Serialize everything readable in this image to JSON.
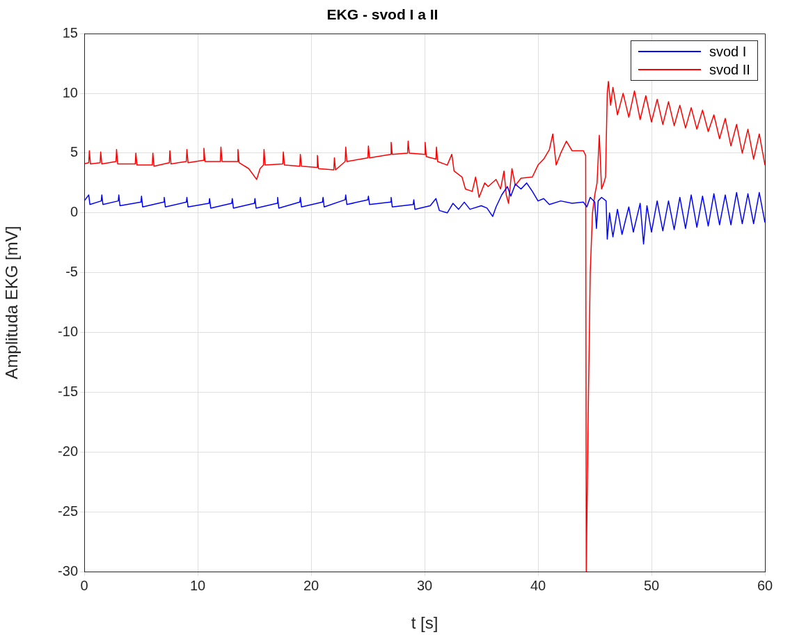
{
  "chart_data": {
    "type": "line",
    "title": "EKG - svod I a II",
    "xlabel": "t [s]",
    "ylabel": "Amplituda EKG [mV]",
    "xlim": [
      0,
      60
    ],
    "ylim": [
      -30,
      15
    ],
    "xticks": [
      0,
      10,
      20,
      30,
      40,
      50,
      60
    ],
    "yticks": [
      -30,
      -25,
      -20,
      -15,
      -10,
      -5,
      0,
      5,
      10,
      15
    ],
    "grid": true,
    "legend": "top right",
    "series": [
      {
        "name": "svod I",
        "color": "#0000ff",
        "x": [
          0,
          0.4,
          0.5,
          1.5,
          1.55,
          1.65,
          3,
          3.05,
          3.15,
          5,
          5.05,
          5.15,
          7,
          7.05,
          7.15,
          9,
          9.05,
          9.15,
          11,
          11.05,
          11.15,
          13,
          13.05,
          13.15,
          15,
          15.05,
          15.15,
          17,
          17.05,
          17.15,
          19,
          19.05,
          19.15,
          21,
          21.05,
          21.15,
          23,
          23.05,
          23.15,
          25,
          25.05,
          25.15,
          27,
          27.05,
          27.15,
          29,
          29.05,
          29.15,
          30.5,
          31,
          31.3,
          32,
          32.5,
          33,
          33.5,
          34,
          35,
          35.5,
          36,
          36.3,
          36.8,
          37.3,
          37.6,
          38,
          38.5,
          39,
          39.5,
          40,
          40.5,
          41,
          42,
          43,
          44,
          44.3,
          44.6,
          45,
          45.15,
          45.3,
          45.6,
          46,
          46.1,
          46.3,
          46.6,
          47,
          47.4,
          48,
          48.4,
          49,
          49.3,
          49.6,
          50,
          50.5,
          51,
          51.5,
          52,
          52.5,
          53,
          53.5,
          54,
          54.5,
          55,
          55.5,
          56,
          56.5,
          57,
          57.5,
          58,
          58.5,
          59,
          59.5,
          60
        ],
        "values": [
          1.0,
          1.5,
          0.7,
          1.0,
          1.5,
          0.7,
          1.0,
          1.5,
          0.6,
          0.9,
          1.4,
          0.5,
          0.9,
          1.3,
          0.5,
          0.9,
          1.3,
          0.5,
          0.8,
          1.2,
          0.4,
          0.8,
          1.2,
          0.4,
          0.8,
          1.2,
          0.4,
          0.8,
          1.3,
          0.4,
          0.9,
          1.3,
          0.5,
          0.9,
          1.3,
          0.5,
          1.1,
          1.5,
          0.7,
          1.1,
          1.4,
          0.7,
          0.9,
          1.3,
          0.5,
          0.7,
          1.1,
          0.3,
          0.6,
          1.2,
          0.2,
          0.0,
          0.8,
          0.3,
          0.9,
          0.3,
          0.6,
          0.4,
          -0.3,
          0.5,
          1.5,
          2.2,
          1.4,
          2.4,
          2.0,
          2.5,
          1.8,
          1.0,
          1.2,
          0.7,
          1.0,
          0.8,
          0.9,
          0.5,
          1.3,
          0.9,
          -1.3,
          1.0,
          1.3,
          1.0,
          -2.2,
          0.0,
          -2.0,
          0.3,
          -1.8,
          0.5,
          -1.6,
          0.8,
          -2.6,
          0.6,
          -1.6,
          1.0,
          -1.5,
          1.0,
          -1.4,
          1.3,
          -1.3,
          1.5,
          -1.2,
          1.4,
          -1.1,
          1.6,
          -1.0,
          1.5,
          -1.0,
          1.7,
          -0.9,
          1.6,
          -0.9,
          1.7,
          -0.8
        ]
      },
      {
        "name": "svod II",
        "color": "#ff0000",
        "x": [
          0,
          0.4,
          0.45,
          0.55,
          1.4,
          1.45,
          1.55,
          2.8,
          2.85,
          2.95,
          4.5,
          4.55,
          4.65,
          6,
          6.05,
          6.15,
          7.5,
          7.55,
          7.65,
          9,
          9.05,
          9.15,
          10.5,
          10.55,
          10.65,
          12,
          12.05,
          12.15,
          13.5,
          13.55,
          13.65,
          14.5,
          15.2,
          15.5,
          15.8,
          15.85,
          15.95,
          17.5,
          17.55,
          17.65,
          19,
          19.05,
          19.15,
          20.5,
          20.55,
          20.65,
          22,
          22.05,
          22.15,
          23,
          23.05,
          23.15,
          25,
          25.05,
          25.15,
          27,
          27.05,
          27.15,
          28.5,
          28.55,
          28.65,
          30,
          30.05,
          30.15,
          31,
          31.05,
          31.15,
          32,
          32.4,
          32.6,
          33.3,
          33.6,
          34.2,
          34.5,
          34.8,
          35.3,
          35.6,
          36.3,
          36.7,
          37,
          37.2,
          37.4,
          37.7,
          38,
          38.5,
          39.5,
          40,
          40.5,
          41,
          41.3,
          41.6,
          42,
          42.5,
          43,
          44,
          44.2,
          44.25,
          44.45,
          44.6,
          44.8,
          45,
          45.2,
          45.4,
          45.6,
          45.8,
          45.95,
          46.1,
          46.2,
          46.4,
          46.6,
          47,
          47.5,
          48,
          48.5,
          49,
          49.5,
          50,
          50.5,
          51,
          51.5,
          52,
          52.5,
          53,
          53.5,
          54,
          54.5,
          55,
          55.5,
          56,
          56.5,
          57,
          57.5,
          58,
          58.5,
          59,
          59.5,
          60
        ],
        "values": [
          4.1,
          4.2,
          5.2,
          4.1,
          4.2,
          5.1,
          4.1,
          4.3,
          5.3,
          4.1,
          4.1,
          5.0,
          4.0,
          4.0,
          5.0,
          3.9,
          4.2,
          5.2,
          4.1,
          4.3,
          5.3,
          4.2,
          4.4,
          5.4,
          4.3,
          4.3,
          5.5,
          4.3,
          4.3,
          5.3,
          4.2,
          3.7,
          2.8,
          3.7,
          4.0,
          5.3,
          4.0,
          4.1,
          5.1,
          4.0,
          3.9,
          4.9,
          3.9,
          3.8,
          4.8,
          3.7,
          3.6,
          4.6,
          3.6,
          4.3,
          5.5,
          4.3,
          4.6,
          5.6,
          4.6,
          4.9,
          5.9,
          4.9,
          5.0,
          6.0,
          5.0,
          4.9,
          5.9,
          4.7,
          4.5,
          5.5,
          4.3,
          4.0,
          4.9,
          3.5,
          3.0,
          2.0,
          1.8,
          3.0,
          1.3,
          2.5,
          2.2,
          2.8,
          2.0,
          3.5,
          1.5,
          0.8,
          3.7,
          2.3,
          2.9,
          3.0,
          4.0,
          4.5,
          5.3,
          6.6,
          4.0,
          5.0,
          6.0,
          5.2,
          5.2,
          4.8,
          -30,
          -15,
          -5,
          0,
          1.5,
          2.5,
          6.5,
          2.0,
          2.5,
          3.0,
          10.0,
          11.0,
          9.0,
          10.5,
          8.2,
          10.0,
          8.0,
          10.2,
          7.8,
          9.8,
          7.6,
          9.5,
          7.4,
          9.3,
          7.3,
          9.0,
          7.1,
          8.8,
          7.0,
          8.6,
          6.8,
          8.2,
          6.2,
          7.9,
          5.6,
          7.4,
          5.0,
          7.0,
          4.5,
          6.6,
          4.0
        ]
      }
    ]
  }
}
